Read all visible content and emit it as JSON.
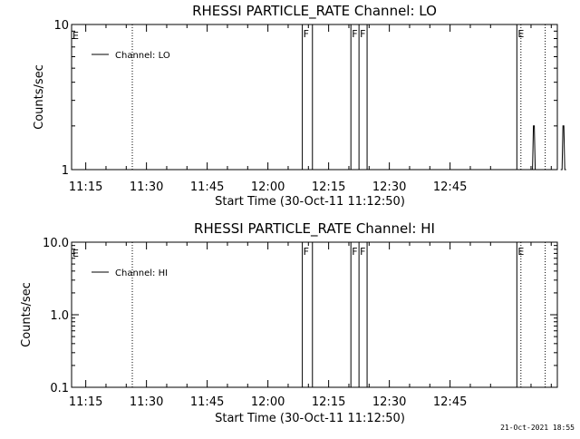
{
  "footer": {
    "timestamp": "21-Oct-2021 18:55"
  },
  "chart_data": [
    {
      "type": "line",
      "title": "RHESSI PARTICLE_RATE Channel: LO",
      "xlabel": "Start Time (30-Oct-11 11:12:50)",
      "ylabel": "Counts/sec",
      "yscale": "log",
      "ylim": [
        1,
        10
      ],
      "xlim_minutes": [
        11.5,
        131.5
      ],
      "ytick_labels": [
        {
          "v": 1,
          "t": "1"
        },
        {
          "v": 10,
          "t": "10"
        }
      ],
      "xtick_labels": [
        "11:15",
        "11:30",
        "11:45",
        "12:00",
        "12:15",
        "12:30",
        "12:45"
      ],
      "legend": {
        "label": "Channel: LO",
        "position": "top-left"
      },
      "grid": false,
      "dotted_markers": [
        26.5,
        122.5,
        128.5
      ],
      "flag_lines": [
        {
          "t": 68.5,
          "label": "F"
        },
        {
          "t": 71.0,
          "label": ""
        },
        {
          "t": 80.5,
          "label": "F"
        },
        {
          "t": 82.5,
          "label": "F"
        },
        {
          "t": 84.5,
          "label": ""
        },
        {
          "t": 121.5,
          "label": "E"
        }
      ],
      "corner_labels": [
        {
          "t": 11.5,
          "label": "E"
        }
      ],
      "series": [
        {
          "name": "Channel: LO",
          "spikes": [
            {
              "t": 125.7,
              "y": 2.0
            },
            {
              "t": 133.0,
              "y": 2.0
            }
          ]
        }
      ]
    },
    {
      "type": "line",
      "title": "RHESSI PARTICLE_RATE Channel: HI",
      "xlabel": "Start Time (30-Oct-11 11:12:50)",
      "ylabel": "Counts/sec",
      "yscale": "log",
      "ylim": [
        0.1,
        10
      ],
      "xlim_minutes": [
        11.5,
        131.5
      ],
      "ytick_labels": [
        {
          "v": 0.1,
          "t": "0.1"
        },
        {
          "v": 1,
          "t": "1.0"
        },
        {
          "v": 10,
          "t": "10.0"
        }
      ],
      "xtick_labels": [
        "11:15",
        "11:30",
        "11:45",
        "12:00",
        "12:15",
        "12:30",
        "12:45"
      ],
      "legend": {
        "label": "Channel: HI",
        "position": "top-left"
      },
      "grid": false,
      "dotted_markers": [
        26.5,
        122.5,
        128.5
      ],
      "flag_lines": [
        {
          "t": 68.5,
          "label": "F"
        },
        {
          "t": 71.0,
          "label": ""
        },
        {
          "t": 80.5,
          "label": "F"
        },
        {
          "t": 82.5,
          "label": "F"
        },
        {
          "t": 84.5,
          "label": ""
        },
        {
          "t": 121.5,
          "label": "E"
        }
      ],
      "corner_labels": [
        {
          "t": 11.5,
          "label": "E"
        }
      ],
      "series": [
        {
          "name": "Channel: HI",
          "spikes": []
        }
      ]
    }
  ]
}
